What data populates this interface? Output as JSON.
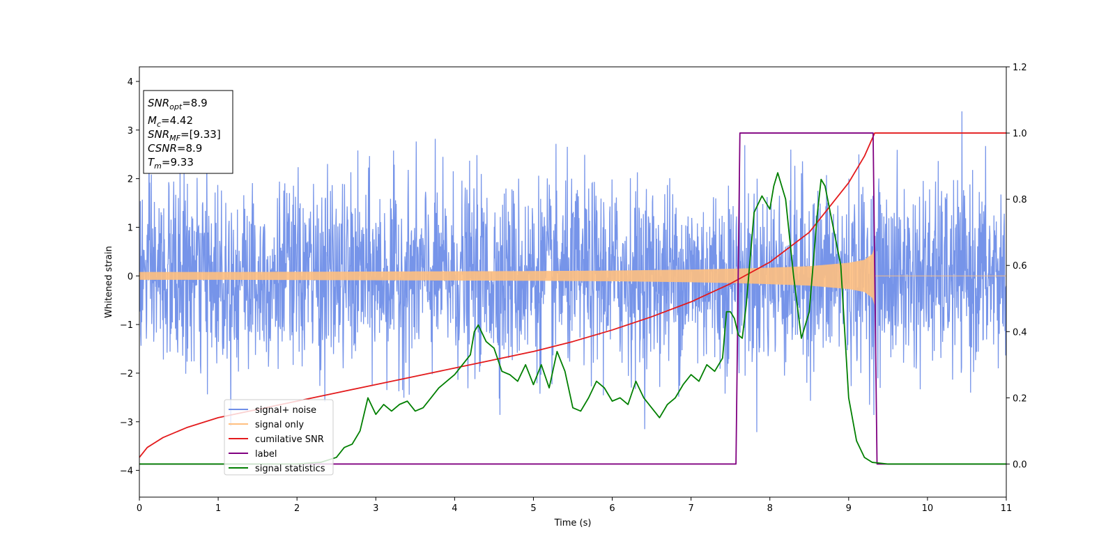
{
  "chart_data": {
    "type": "line",
    "title": "",
    "xlabel": "Time (s)",
    "ylabel": "Whitened strain",
    "ylabel_right": "",
    "xlim": [
      0,
      11
    ],
    "ylim": [
      -4.55,
      4.3
    ],
    "ylim_right": [
      -0.1,
      1.2
    ],
    "x_ticks": [
      0,
      1,
      2,
      3,
      4,
      5,
      6,
      7,
      8,
      9,
      10,
      11
    ],
    "y_ticks": [
      -4,
      -3,
      -2,
      -1,
      0,
      1,
      2,
      3,
      4
    ],
    "y_ticks_right": [
      0.0,
      0.2,
      0.4,
      0.6,
      0.8,
      1.0,
      1.2
    ],
    "x_tick_labels": [
      "0",
      "1",
      "2",
      "3",
      "4",
      "5",
      "6",
      "7",
      "8",
      "9",
      "10",
      "11"
    ],
    "y_tick_labels": [
      "−4",
      "−3",
      "−2",
      "−1",
      "0",
      "1",
      "2",
      "3",
      "4"
    ],
    "y_tick_labels_right": [
      "0.0",
      "0.2",
      "0.4",
      "0.6",
      "0.8",
      "1.0",
      "1.2"
    ],
    "grid": false,
    "legend_position": "lower-left",
    "info_box": {
      "lines": [
        {
          "main": "SNR",
          "sub": "opt",
          "value": "=8.9"
        },
        {
          "main": "M",
          "sub": "c",
          "value": "=4.42"
        },
        {
          "main": "SNR",
          "sub": "MF",
          "value": "=[9.33]"
        },
        {
          "main": "CSNR",
          "sub": "",
          "value": "=8.9"
        },
        {
          "main": "T",
          "sub": "m",
          "value": "=9.33"
        }
      ]
    },
    "series": [
      {
        "name": "signal+ noise",
        "axis": "left",
        "color": "#6f8ee8",
        "kind": "noise",
        "noise_sigma": 1.0,
        "t_range": [
          0,
          11
        ]
      },
      {
        "name": "signal only",
        "axis": "left",
        "color": "#ffbf7f",
        "kind": "chirp_envelope",
        "envelope": {
          "t": [
            0,
            1,
            2,
            3,
            4,
            5,
            6,
            7,
            7.6,
            8,
            8.5,
            9,
            9.2,
            9.3,
            9.33
          ],
          "amp": [
            0.08,
            0.08,
            0.085,
            0.09,
            0.095,
            0.1,
            0.11,
            0.13,
            0.15,
            0.17,
            0.2,
            0.27,
            0.33,
            0.45,
            0.6
          ]
        },
        "t_end": 9.33
      },
      {
        "name": "cumilative SNR",
        "axis": "right",
        "color": "#e31a1c",
        "x": [
          0,
          0.1,
          0.3,
          0.6,
          1.0,
          1.5,
          2.0,
          2.5,
          3.0,
          3.5,
          4.0,
          4.5,
          5.0,
          5.5,
          6.0,
          6.5,
          7.0,
          7.5,
          8.0,
          8.5,
          9.0,
          9.2,
          9.33,
          11
        ],
        "y": [
          0.02,
          0.05,
          0.08,
          0.11,
          0.14,
          0.165,
          0.19,
          0.215,
          0.24,
          0.265,
          0.29,
          0.315,
          0.34,
          0.37,
          0.405,
          0.445,
          0.49,
          0.545,
          0.61,
          0.7,
          0.85,
          0.93,
          1.0,
          1.0
        ]
      },
      {
        "name": "label",
        "axis": "right",
        "color": "#800080",
        "x": [
          0,
          7.57,
          7.62,
          9.31,
          9.36,
          11
        ],
        "y": [
          0,
          0,
          1,
          1,
          0,
          0
        ]
      },
      {
        "name": "signal statistics",
        "axis": "right",
        "color": "#007f00",
        "x": [
          0,
          0.5,
          1.0,
          1.5,
          2.0,
          2.3,
          2.5,
          2.6,
          2.7,
          2.8,
          2.9,
          3.0,
          3.1,
          3.2,
          3.3,
          3.4,
          3.5,
          3.6,
          3.7,
          3.8,
          3.9,
          4.0,
          4.1,
          4.2,
          4.25,
          4.3,
          4.4,
          4.5,
          4.6,
          4.7,
          4.8,
          4.9,
          5.0,
          5.1,
          5.2,
          5.3,
          5.4,
          5.5,
          5.6,
          5.7,
          5.8,
          5.9,
          6.0,
          6.1,
          6.2,
          6.3,
          6.4,
          6.5,
          6.6,
          6.7,
          6.8,
          6.9,
          7.0,
          7.1,
          7.2,
          7.3,
          7.4,
          7.45,
          7.5,
          7.55,
          7.6,
          7.65,
          7.7,
          7.8,
          7.9,
          8.0,
          8.05,
          8.1,
          8.2,
          8.3,
          8.4,
          8.5,
          8.6,
          8.65,
          8.7,
          8.8,
          8.9,
          9.0,
          9.1,
          9.2,
          9.3,
          9.5,
          11
        ],
        "y": [
          0.0,
          0.0,
          0.0,
          0.0,
          0.0,
          0.005,
          0.02,
          0.05,
          0.06,
          0.1,
          0.2,
          0.15,
          0.18,
          0.16,
          0.18,
          0.19,
          0.16,
          0.17,
          0.2,
          0.23,
          0.25,
          0.27,
          0.3,
          0.33,
          0.4,
          0.42,
          0.37,
          0.35,
          0.28,
          0.27,
          0.25,
          0.3,
          0.24,
          0.3,
          0.23,
          0.34,
          0.28,
          0.17,
          0.16,
          0.2,
          0.25,
          0.23,
          0.19,
          0.2,
          0.18,
          0.25,
          0.2,
          0.17,
          0.14,
          0.18,
          0.2,
          0.24,
          0.27,
          0.25,
          0.3,
          0.28,
          0.32,
          0.46,
          0.46,
          0.44,
          0.39,
          0.38,
          0.48,
          0.76,
          0.81,
          0.77,
          0.84,
          0.88,
          0.8,
          0.57,
          0.38,
          0.46,
          0.75,
          0.86,
          0.84,
          0.72,
          0.6,
          0.2,
          0.07,
          0.02,
          0.005,
          0.0,
          0.0
        ]
      }
    ]
  }
}
